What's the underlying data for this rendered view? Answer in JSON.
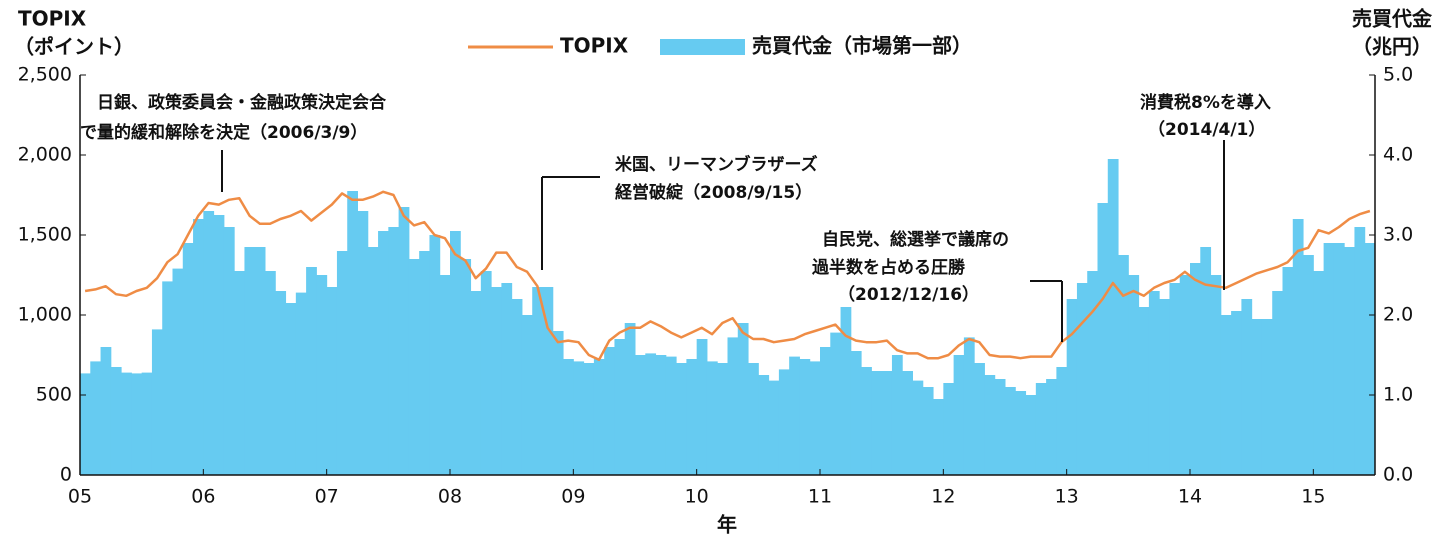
{
  "chart_data": {
    "type": "combo",
    "ylabel": [
      "TOPIX",
      "（ポイント）"
    ],
    "y2label": [
      "売買代金",
      "（兆円）"
    ],
    "xlabel": "年",
    "x": [
      0,
      1,
      2,
      3,
      4,
      5,
      6,
      7,
      8,
      9,
      10,
      11,
      12,
      13,
      14,
      15,
      16,
      17,
      18,
      19,
      20,
      21,
      22,
      23,
      24,
      25,
      26,
      27,
      28,
      29,
      30,
      31,
      32,
      33,
      34,
      35,
      36,
      37,
      38,
      39,
      40,
      41,
      42,
      43,
      44,
      45,
      46,
      47,
      48,
      49,
      50,
      51,
      52,
      53,
      54,
      55,
      56,
      57,
      58,
      59,
      60,
      61,
      62,
      63,
      64,
      65,
      66,
      67,
      68,
      69,
      70,
      71,
      72,
      73,
      74,
      75,
      76,
      77,
      78,
      79,
      80,
      81,
      82,
      83,
      84,
      85,
      86,
      87,
      88,
      89,
      90,
      91,
      92,
      93,
      94,
      95,
      96,
      97,
      98,
      99,
      100,
      101,
      102,
      103,
      104,
      105,
      106,
      107,
      108,
      109,
      110,
      111,
      112,
      113,
      114,
      115,
      116,
      117,
      118,
      119,
      120,
      121,
      122,
      123,
      124,
      125
    ],
    "xlim": [
      0,
      126
    ],
    "xticks": [
      {
        "value": 0,
        "label": "05"
      },
      {
        "value": 12,
        "label": "06"
      },
      {
        "value": 24,
        "label": "07"
      },
      {
        "value": 36,
        "label": "08"
      },
      {
        "value": 48,
        "label": "09"
      },
      {
        "value": 60,
        "label": "10"
      },
      {
        "value": 72,
        "label": "11"
      },
      {
        "value": 84,
        "label": "12"
      },
      {
        "value": 96,
        "label": "13"
      },
      {
        "value": 108,
        "label": "14"
      },
      {
        "value": 120,
        "label": "15"
      }
    ],
    "ylim": [
      0,
      2500
    ],
    "yticks": [
      0,
      500,
      {
        "value": 1000,
        "label": "1,000"
      },
      {
        "value": 1500,
        "label": "1,500"
      },
      {
        "value": 2000,
        "label": "2,000"
      },
      {
        "value": 2500,
        "label": "2,500"
      }
    ],
    "y2lim": [
      0,
      5
    ],
    "y2ticks": [
      {
        "value": 0,
        "label": "0.0"
      },
      {
        "value": 1,
        "label": "1.0"
      },
      {
        "value": 2,
        "label": "2.0"
      },
      {
        "value": 3,
        "label": "3.0"
      },
      {
        "value": 4,
        "label": "4.0"
      },
      {
        "value": 5,
        "label": "5.0"
      }
    ],
    "series": [
      {
        "name": "TOPIX",
        "type": "line",
        "color": "#ef8c45",
        "values": [
          1150,
          1160,
          1180,
          1130,
          1120,
          1150,
          1170,
          1230,
          1330,
          1380,
          1500,
          1620,
          1700,
          1690,
          1720,
          1730,
          1620,
          1570,
          1570,
          1600,
          1620,
          1650,
          1590,
          1640,
          1690,
          1760,
          1720,
          1720,
          1740,
          1770,
          1750,
          1620,
          1560,
          1580,
          1500,
          1480,
          1380,
          1340,
          1230,
          1290,
          1390,
          1390,
          1300,
          1270,
          1180,
          920,
          830,
          840,
          830,
          750,
          720,
          840,
          890,
          920,
          920,
          960,
          930,
          890,
          860,
          890,
          920,
          880,
          950,
          980,
          890,
          850,
          850,
          830,
          840,
          850,
          880,
          900,
          920,
          940,
          870,
          840,
          830,
          830,
          840,
          780,
          760,
          760,
          730,
          730,
          750,
          810,
          850,
          830,
          750,
          740,
          740,
          730,
          740,
          740,
          740,
          830,
          880,
          950,
          1020,
          1100,
          1200,
          1120,
          1150,
          1120,
          1170,
          1200,
          1220,
          1270,
          1220,
          1190,
          1180,
          1170,
          1200,
          1230,
          1260,
          1280,
          1300,
          1330,
          1400,
          1420,
          1530,
          1510,
          1550,
          1600,
          1630,
          1650
        ]
      },
      {
        "name": "売買代金（市場第一部）",
        "type": "bar",
        "axis": "y2",
        "color": "#66cbf1",
        "values": [
          1.27,
          1.42,
          1.6,
          1.35,
          1.28,
          1.27,
          1.28,
          1.82,
          2.42,
          2.58,
          2.9,
          3.2,
          3.3,
          3.25,
          3.1,
          2.55,
          2.85,
          2.85,
          2.55,
          2.3,
          2.15,
          2.28,
          2.6,
          2.5,
          2.35,
          2.8,
          3.55,
          3.3,
          2.85,
          3.05,
          3.1,
          3.35,
          2.7,
          2.8,
          3.0,
          2.5,
          3.05,
          2.7,
          2.3,
          2.55,
          2.35,
          2.4,
          2.2,
          2.0,
          2.35,
          2.35,
          1.8,
          1.45,
          1.42,
          1.4,
          1.45,
          1.6,
          1.7,
          1.9,
          1.5,
          1.52,
          1.5,
          1.48,
          1.4,
          1.45,
          1.7,
          1.42,
          1.4,
          1.72,
          1.9,
          1.4,
          1.25,
          1.18,
          1.32,
          1.48,
          1.45,
          1.42,
          1.6,
          1.78,
          2.1,
          1.55,
          1.35,
          1.3,
          1.3,
          1.5,
          1.3,
          1.18,
          1.1,
          0.95,
          1.15,
          1.5,
          1.72,
          1.4,
          1.25,
          1.2,
          1.1,
          1.05,
          1.0,
          1.15,
          1.2,
          1.35,
          2.2,
          2.4,
          2.55,
          3.4,
          3.95,
          2.75,
          2.5,
          2.1,
          2.3,
          2.2,
          2.4,
          2.5,
          2.65,
          2.85,
          2.5,
          2.0,
          2.05,
          2.2,
          1.95,
          1.95,
          2.3,
          2.6,
          3.2,
          2.75,
          2.55,
          2.9,
          2.9,
          2.85,
          3.1,
          2.9
        ]
      }
    ],
    "annotations": [
      {
        "lines": [
          "日銀、政策委員会・金融政策決定会合",
          "で量的緩和解除を決定（2006/3/9）"
        ]
      },
      {
        "lines": [
          "米国、リーマンブラザーズ",
          "経営破綻（2008/9/15）"
        ]
      },
      {
        "lines": [
          "自民党、総選挙で議席の",
          "過半数を占める圧勝",
          "（2012/12/16）"
        ]
      },
      {
        "lines": [
          "消費税8%を導入",
          "（2014/4/1）"
        ]
      }
    ]
  }
}
